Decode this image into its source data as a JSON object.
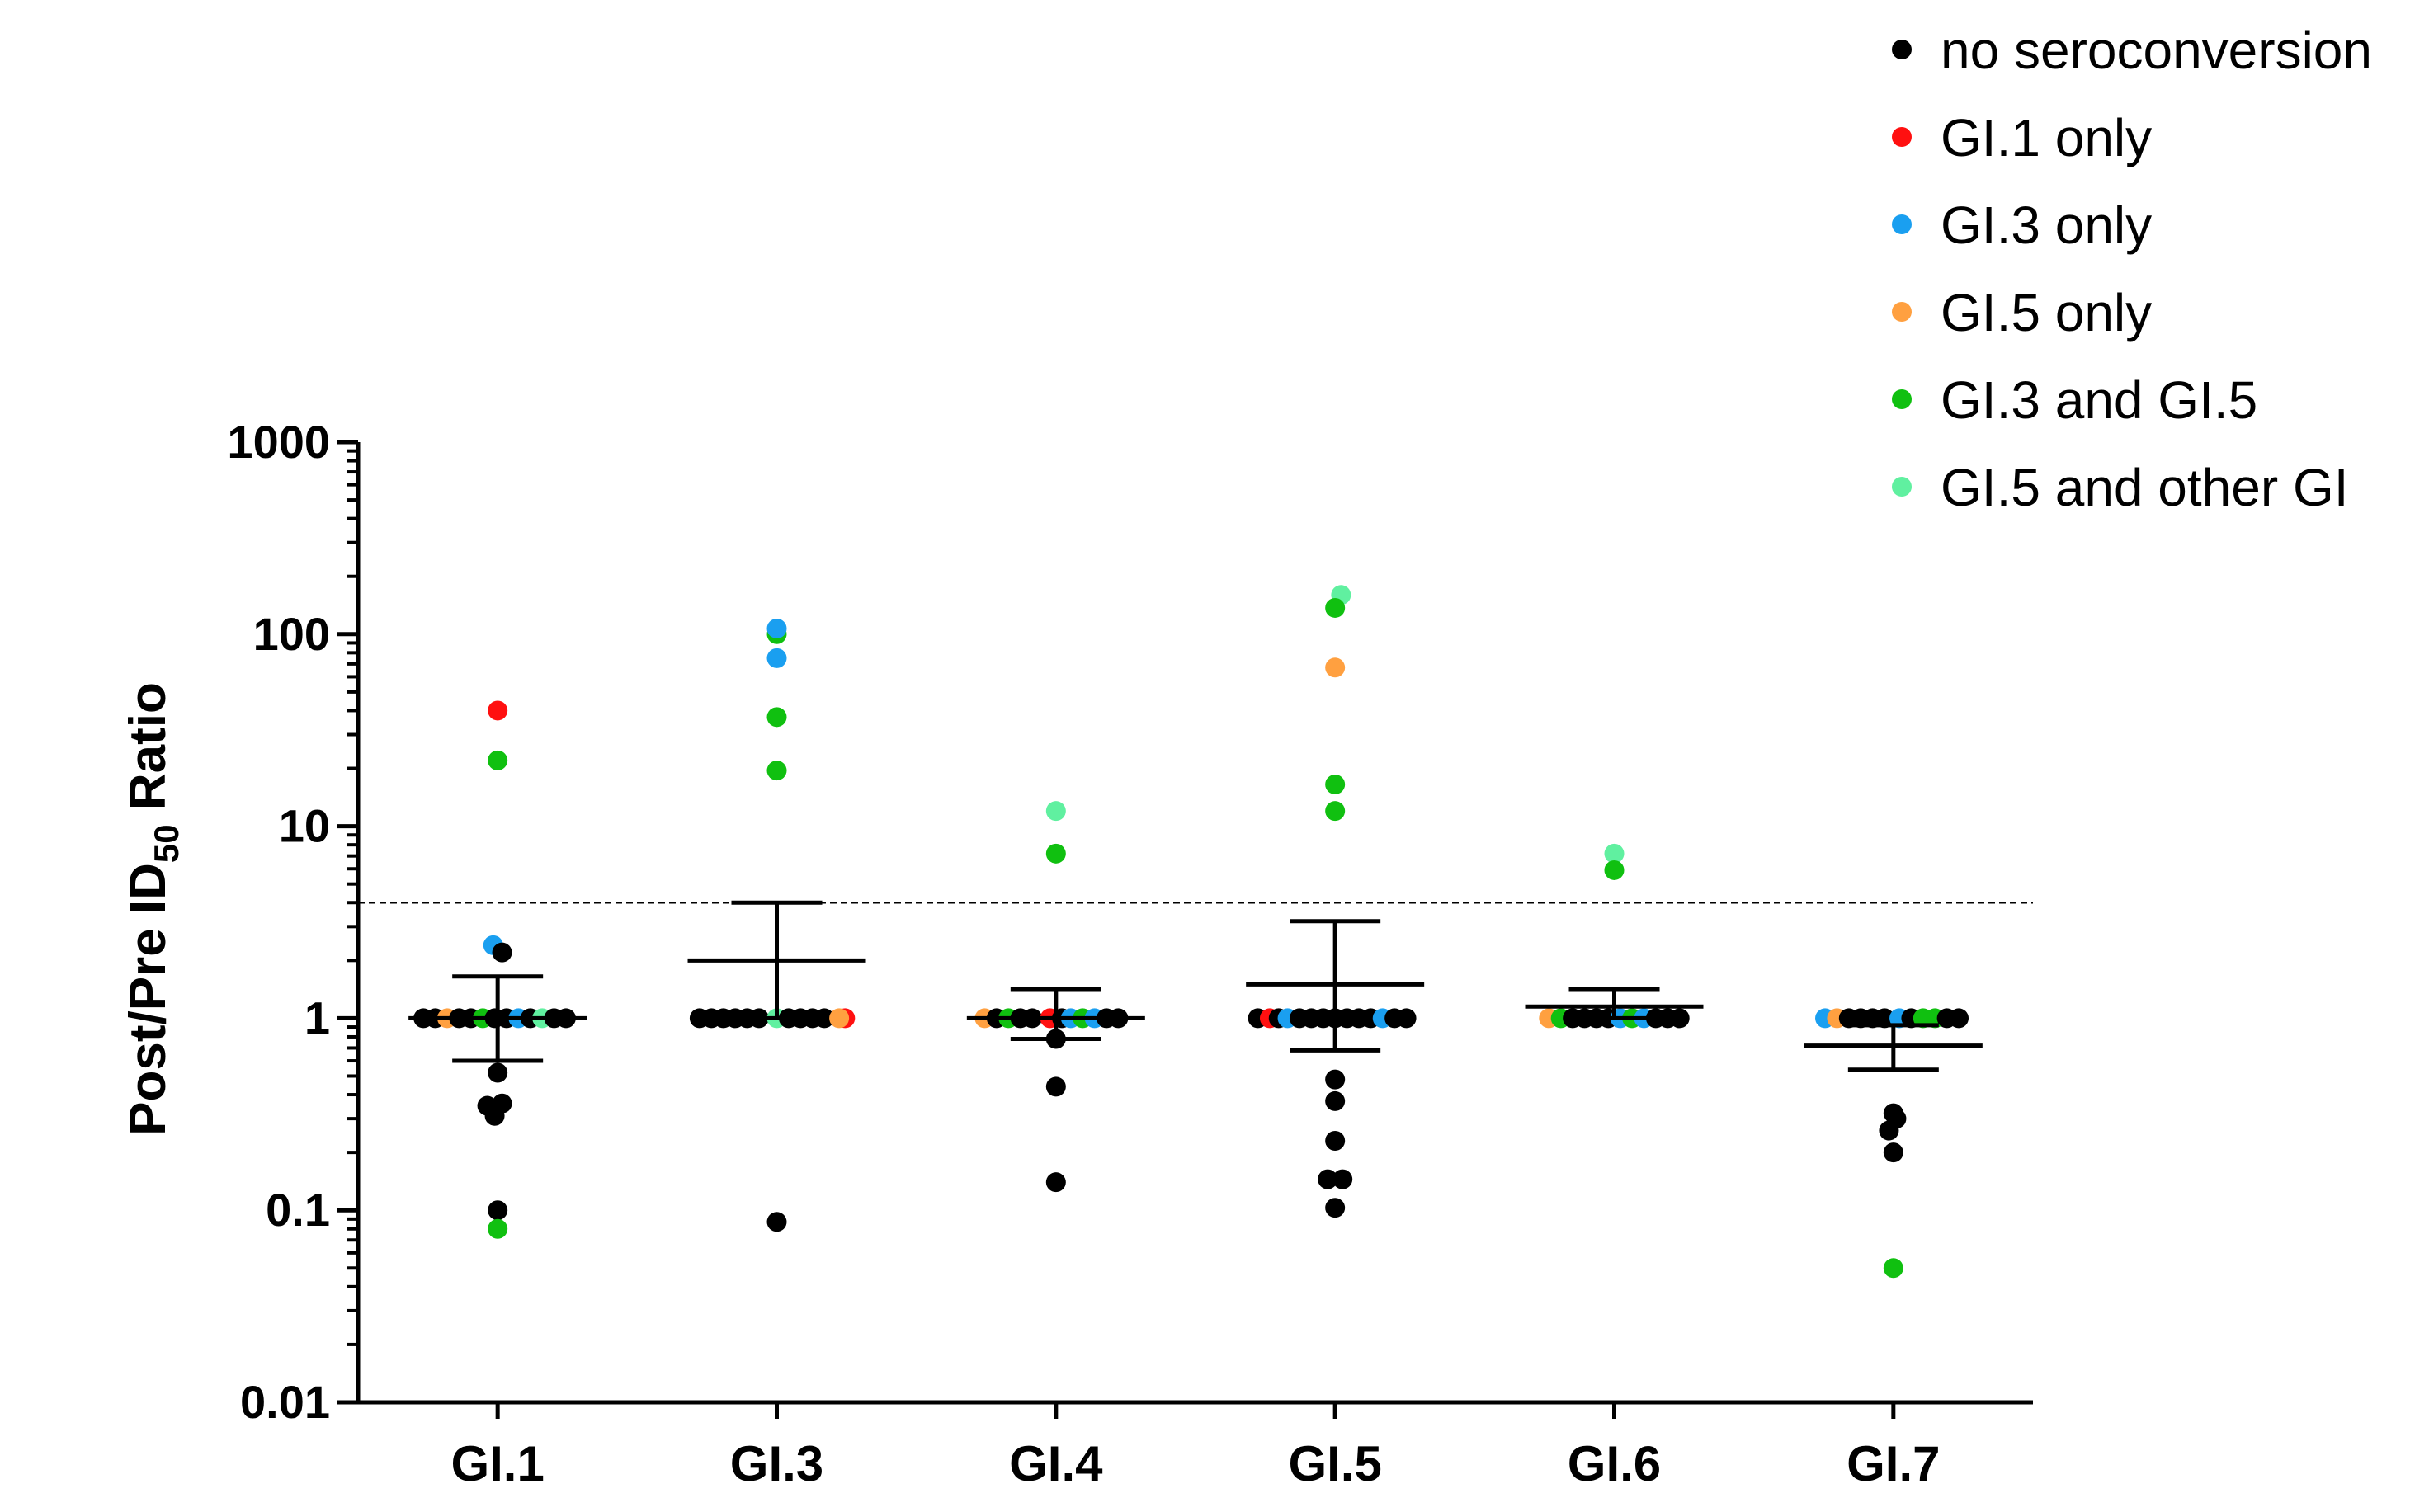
{
  "chart_data": {
    "type": "scatter",
    "title": "",
    "ylabel": {
      "prefix": "Post/Pre ID",
      "subscript": "50",
      "suffix": " Ratio"
    },
    "yscale": "log",
    "ylim": [
      0.01,
      1000
    ],
    "yticks": [
      {
        "value": 0.01,
        "label": "0.01"
      },
      {
        "value": 0.1,
        "label": "0.1"
      },
      {
        "value": 1,
        "label": "1"
      },
      {
        "value": 10,
        "label": "10"
      },
      {
        "value": 100,
        "label": "100"
      },
      {
        "value": 1000,
        "label": "1000"
      }
    ],
    "categories": [
      "GI.1",
      "GI.3",
      "GI.4",
      "GI.5",
      "GI.6",
      "GI.7"
    ],
    "threshold": 4,
    "groups": [
      {
        "key": "none",
        "name": "no seroconversion",
        "color": "#000000"
      },
      {
        "key": "gi1",
        "name": "GI.1 only",
        "color": "#ff1010"
      },
      {
        "key": "gi3",
        "name": "GI.3 only",
        "color": "#1a9ff0"
      },
      {
        "key": "gi5",
        "name": "GI.5 only",
        "color": "#ffa040"
      },
      {
        "key": "gi35",
        "name": "GI.3 and GI.5",
        "color": "#10c010"
      },
      {
        "key": "gi5o",
        "name": "GI.5 and other GI",
        "color": "#60f0a0"
      }
    ],
    "summary": [
      {
        "category": "GI.1",
        "mean": 1.0,
        "upper": 1.65,
        "lower": 0.6
      },
      {
        "category": "GI.3",
        "mean": 2.0,
        "upper": 4.0,
        "lower": 1.0
      },
      {
        "category": "GI.4",
        "mean": 1.0,
        "upper": 1.42,
        "lower": 0.78
      },
      {
        "category": "GI.5",
        "mean": 1.5,
        "upper": 3.2,
        "lower": 0.68
      },
      {
        "category": "GI.6",
        "mean": 1.15,
        "upper": 1.42,
        "lower": 1.0
      },
      {
        "category": "GI.7",
        "mean": 0.72,
        "upper": 0.92,
        "lower": 0.54
      }
    ],
    "points": [
      {
        "c": 0,
        "y": 40,
        "g": "gi1",
        "dx": 0
      },
      {
        "c": 0,
        "y": 22,
        "g": "gi35",
        "dx": 0
      },
      {
        "c": 0,
        "y": 2.4,
        "g": "gi3",
        "dx": -0.15
      },
      {
        "c": 0,
        "y": 2.2,
        "g": "none",
        "dx": 0.15
      },
      {
        "c": 0,
        "y": 1,
        "g": "none",
        "dx": -2.5
      },
      {
        "c": 0,
        "y": 1,
        "g": "none",
        "dx": -2.1
      },
      {
        "c": 0,
        "y": 1,
        "g": "gi5",
        "dx": -1.7
      },
      {
        "c": 0,
        "y": 1,
        "g": "none",
        "dx": -1.3
      },
      {
        "c": 0,
        "y": 1,
        "g": "none",
        "dx": -0.9
      },
      {
        "c": 0,
        "y": 1,
        "g": "gi35",
        "dx": -0.5
      },
      {
        "c": 0,
        "y": 1,
        "g": "none",
        "dx": -0.1
      },
      {
        "c": 0,
        "y": 1,
        "g": "none",
        "dx": 0.3
      },
      {
        "c": 0,
        "y": 1,
        "g": "gi3",
        "dx": 0.7
      },
      {
        "c": 0,
        "y": 1,
        "g": "none",
        "dx": 1.1
      },
      {
        "c": 0,
        "y": 1,
        "g": "gi5o",
        "dx": 1.5
      },
      {
        "c": 0,
        "y": 1,
        "g": "none",
        "dx": 1.9
      },
      {
        "c": 0,
        "y": 1,
        "g": "none",
        "dx": 2.3
      },
      {
        "c": 0,
        "y": 0.52,
        "g": "none",
        "dx": 0
      },
      {
        "c": 0,
        "y": 0.35,
        "g": "none",
        "dx": -0.35
      },
      {
        "c": 0,
        "y": 0.36,
        "g": "none",
        "dx": 0.15
      },
      {
        "c": 0,
        "y": 0.31,
        "g": "none",
        "dx": -0.1
      },
      {
        "c": 0,
        "y": 0.1,
        "g": "none",
        "dx": 0
      },
      {
        "c": 0,
        "y": 0.08,
        "g": "gi35",
        "dx": 0
      },
      {
        "c": 1,
        "y": 100,
        "g": "gi35",
        "dx": 0
      },
      {
        "c": 1,
        "y": 107,
        "g": "gi3",
        "dx": 0
      },
      {
        "c": 1,
        "y": 75,
        "g": "gi3",
        "dx": 0
      },
      {
        "c": 1,
        "y": 37,
        "g": "gi35",
        "dx": 0
      },
      {
        "c": 1,
        "y": 19.5,
        "g": "gi35",
        "dx": 0
      },
      {
        "c": 1,
        "y": 1,
        "g": "none",
        "dx": -2.6
      },
      {
        "c": 1,
        "y": 1,
        "g": "none",
        "dx": -2.2
      },
      {
        "c": 1,
        "y": 1,
        "g": "none",
        "dx": -1.8
      },
      {
        "c": 1,
        "y": 1,
        "g": "none",
        "dx": -1.4
      },
      {
        "c": 1,
        "y": 1,
        "g": "none",
        "dx": -1.0
      },
      {
        "c": 1,
        "y": 1,
        "g": "none",
        "dx": -0.6
      },
      {
        "c": 1,
        "y": 1,
        "g": "gi5o",
        "dx": 0
      },
      {
        "c": 1,
        "y": 1,
        "g": "none",
        "dx": 0.4
      },
      {
        "c": 1,
        "y": 1,
        "g": "none",
        "dx": 0.8
      },
      {
        "c": 1,
        "y": 1,
        "g": "none",
        "dx": 1.2
      },
      {
        "c": 1,
        "y": 1,
        "g": "none",
        "dx": 1.6
      },
      {
        "c": 1,
        "y": 1,
        "g": "gi1",
        "dx": 2.3
      },
      {
        "c": 1,
        "y": 1,
        "g": "gi5",
        "dx": 2.1
      },
      {
        "c": 1,
        "y": 0.087,
        "g": "none",
        "dx": 0
      },
      {
        "c": 2,
        "y": 12,
        "g": "gi5o",
        "dx": 0
      },
      {
        "c": 2,
        "y": 7.2,
        "g": "gi35",
        "dx": 0
      },
      {
        "c": 2,
        "y": 1,
        "g": "gi5",
        "dx": -2.4
      },
      {
        "c": 2,
        "y": 1,
        "g": "none",
        "dx": -2.0
      },
      {
        "c": 2,
        "y": 1,
        "g": "gi35",
        "dx": -1.6
      },
      {
        "c": 2,
        "y": 1,
        "g": "none",
        "dx": -1.2
      },
      {
        "c": 2,
        "y": 1,
        "g": "none",
        "dx": -0.8
      },
      {
        "c": 2,
        "y": 1,
        "g": "gi1",
        "dx": -0.2
      },
      {
        "c": 2,
        "y": 1,
        "g": "none",
        "dx": 0.2
      },
      {
        "c": 2,
        "y": 1,
        "g": "gi3",
        "dx": 0.5
      },
      {
        "c": 2,
        "y": 1,
        "g": "gi35",
        "dx": 0.9
      },
      {
        "c": 2,
        "y": 1,
        "g": "gi3",
        "dx": 1.3
      },
      {
        "c": 2,
        "y": 1,
        "g": "none",
        "dx": 1.7
      },
      {
        "c": 2,
        "y": 1,
        "g": "none",
        "dx": 2.1
      },
      {
        "c": 2,
        "y": 0.78,
        "g": "none",
        "dx": 0
      },
      {
        "c": 2,
        "y": 0.44,
        "g": "none",
        "dx": 0
      },
      {
        "c": 2,
        "y": 0.14,
        "g": "none",
        "dx": 0
      },
      {
        "c": 3,
        "y": 160,
        "g": "gi5o",
        "dx": 0.2
      },
      {
        "c": 3,
        "y": 137,
        "g": "gi35",
        "dx": 0
      },
      {
        "c": 3,
        "y": 67,
        "g": "gi5",
        "dx": 0
      },
      {
        "c": 3,
        "y": 16.5,
        "g": "gi35",
        "dx": 0
      },
      {
        "c": 3,
        "y": 12,
        "g": "gi35",
        "dx": 0
      },
      {
        "c": 3,
        "y": 1,
        "g": "none",
        "dx": -2.6
      },
      {
        "c": 3,
        "y": 1,
        "g": "gi1",
        "dx": -2.2
      },
      {
        "c": 3,
        "y": 1,
        "g": "none",
        "dx": -1.9
      },
      {
        "c": 3,
        "y": 1,
        "g": "gi3",
        "dx": -1.6
      },
      {
        "c": 3,
        "y": 1,
        "g": "none",
        "dx": -1.2
      },
      {
        "c": 3,
        "y": 1,
        "g": "none",
        "dx": -0.8
      },
      {
        "c": 3,
        "y": 1,
        "g": "none",
        "dx": -0.4
      },
      {
        "c": 3,
        "y": 1,
        "g": "none",
        "dx": 0
      },
      {
        "c": 3,
        "y": 1,
        "g": "none",
        "dx": 0.4
      },
      {
        "c": 3,
        "y": 1,
        "g": "none",
        "dx": 0.8
      },
      {
        "c": 3,
        "y": 1,
        "g": "none",
        "dx": 1.2
      },
      {
        "c": 3,
        "y": 1,
        "g": "gi3",
        "dx": 1.6
      },
      {
        "c": 3,
        "y": 1,
        "g": "none",
        "dx": 2.0
      },
      {
        "c": 3,
        "y": 1,
        "g": "none",
        "dx": 2.4
      },
      {
        "c": 3,
        "y": 0.48,
        "g": "none",
        "dx": 0
      },
      {
        "c": 3,
        "y": 0.37,
        "g": "none",
        "dx": 0
      },
      {
        "c": 3,
        "y": 0.23,
        "g": "none",
        "dx": 0
      },
      {
        "c": 3,
        "y": 0.145,
        "g": "none",
        "dx": -0.25
      },
      {
        "c": 3,
        "y": 0.145,
        "g": "none",
        "dx": 0.25
      },
      {
        "c": 3,
        "y": 0.103,
        "g": "none",
        "dx": 0
      },
      {
        "c": 4,
        "y": 7.2,
        "g": "gi5o",
        "dx": 0
      },
      {
        "c": 4,
        "y": 5.9,
        "g": "gi35",
        "dx": 0
      },
      {
        "c": 4,
        "y": 1,
        "g": "gi5",
        "dx": -2.2
      },
      {
        "c": 4,
        "y": 1,
        "g": "gi35",
        "dx": -1.8
      },
      {
        "c": 4,
        "y": 1,
        "g": "none",
        "dx": -1.4
      },
      {
        "c": 4,
        "y": 1,
        "g": "none",
        "dx": -1.0
      },
      {
        "c": 4,
        "y": 1,
        "g": "none",
        "dx": -0.6
      },
      {
        "c": 4,
        "y": 1,
        "g": "none",
        "dx": -0.2
      },
      {
        "c": 4,
        "y": 1,
        "g": "gi3",
        "dx": 0.2
      },
      {
        "c": 4,
        "y": 1,
        "g": "gi35",
        "dx": 0.6
      },
      {
        "c": 4,
        "y": 1,
        "g": "gi3",
        "dx": 1.0
      },
      {
        "c": 4,
        "y": 1,
        "g": "none",
        "dx": 1.4
      },
      {
        "c": 4,
        "y": 1,
        "g": "none",
        "dx": 1.8
      },
      {
        "c": 4,
        "y": 1,
        "g": "none",
        "dx": 2.2
      },
      {
        "c": 5,
        "y": 1,
        "g": "gi3",
        "dx": -2.3
      },
      {
        "c": 5,
        "y": 1,
        "g": "gi5",
        "dx": -1.9
      },
      {
        "c": 5,
        "y": 1,
        "g": "none",
        "dx": -1.5
      },
      {
        "c": 5,
        "y": 1,
        "g": "none",
        "dx": -1.1
      },
      {
        "c": 5,
        "y": 1,
        "g": "none",
        "dx": -0.7
      },
      {
        "c": 5,
        "y": 1,
        "g": "none",
        "dx": -0.3
      },
      {
        "c": 5,
        "y": 1,
        "g": "gi3",
        "dx": 0.2
      },
      {
        "c": 5,
        "y": 1,
        "g": "none",
        "dx": 0.6
      },
      {
        "c": 5,
        "y": 1,
        "g": "gi35",
        "dx": 1.0
      },
      {
        "c": 5,
        "y": 1,
        "g": "gi35",
        "dx": 1.4
      },
      {
        "c": 5,
        "y": 1,
        "g": "none",
        "dx": 1.8
      },
      {
        "c": 5,
        "y": 1,
        "g": "none",
        "dx": 2.2
      },
      {
        "c": 5,
        "y": 0.32,
        "g": "none",
        "dx": 0
      },
      {
        "c": 5,
        "y": 0.3,
        "g": "none",
        "dx": 0.1
      },
      {
        "c": 5,
        "y": 0.26,
        "g": "none",
        "dx": -0.15
      },
      {
        "c": 5,
        "y": 0.2,
        "g": "none",
        "dx": 0
      },
      {
        "c": 5,
        "y": 0.05,
        "g": "gi35",
        "dx": 0
      }
    ]
  }
}
